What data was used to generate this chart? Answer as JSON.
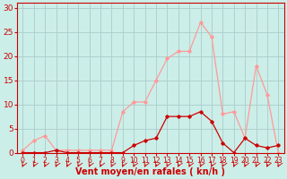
{
  "x": [
    0,
    1,
    2,
    3,
    4,
    5,
    6,
    7,
    8,
    9,
    10,
    11,
    12,
    13,
    14,
    15,
    16,
    17,
    18,
    19,
    20,
    21,
    22,
    23
  ],
  "mean_wind": [
    0,
    0,
    0,
    0.5,
    0,
    0,
    0,
    0,
    0,
    0,
    1.5,
    2.5,
    3,
    7.5,
    7.5,
    7.5,
    8.5,
    6.5,
    2,
    0,
    3,
    1.5,
    1,
    1.5
  ],
  "gust_wind": [
    0.5,
    2.5,
    3.5,
    0.5,
    0.5,
    0.5,
    0.5,
    0.5,
    0.5,
    8.5,
    10.5,
    10.5,
    15,
    19.5,
    21,
    21,
    27,
    24,
    8,
    8.5,
    3,
    18,
    12,
    0
  ],
  "mean_color": "#cc0000",
  "gust_color": "#ff9999",
  "bg_color": "#cceee8",
  "grid_color": "#aacccc",
  "xlabel": "Vent moyen/en rafales ( kn/h )",
  "yticks": [
    0,
    5,
    10,
    15,
    20,
    25,
    30
  ],
  "ylim": [
    0,
    31
  ],
  "xlim": [
    -0.5,
    23.5
  ],
  "marker": "D",
  "markersize": 1.8,
  "linewidth": 0.9,
  "axis_color": "#cc0000",
  "tick_color": "#cc0000",
  "xlabel_color": "#cc0000",
  "xlabel_fontsize": 7.0,
  "ytick_fontsize": 6.5,
  "xtick_fontsize": 5.5
}
